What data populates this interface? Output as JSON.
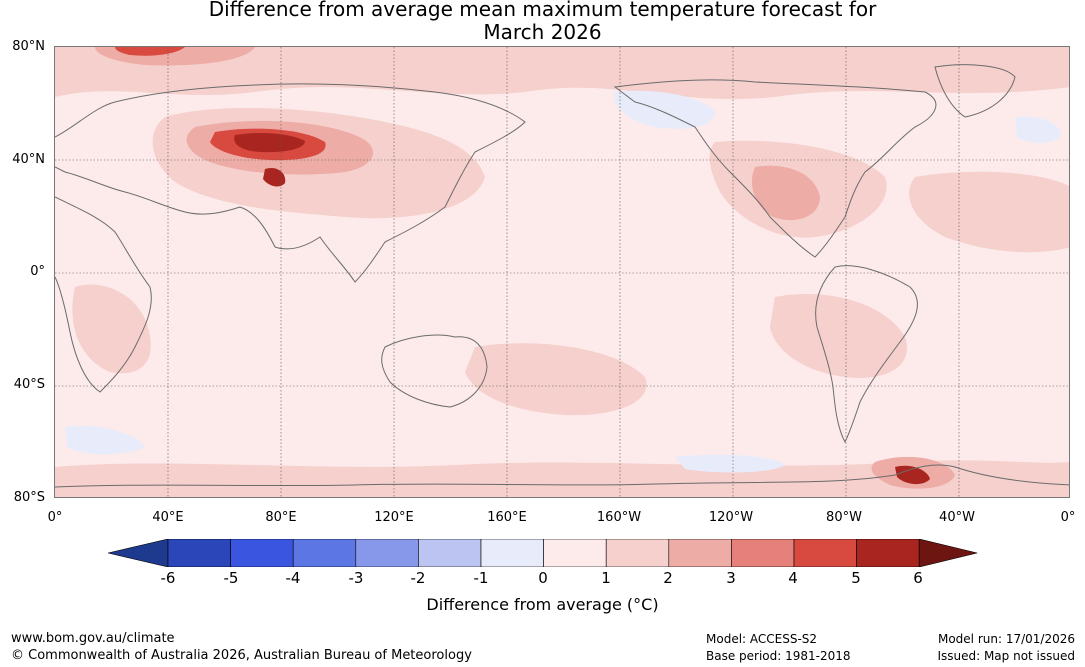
{
  "title": {
    "line1": "Difference from average mean maximum temperature forecast for",
    "line2": "March 2026"
  },
  "map": {
    "lat_labels": [
      "80°N",
      "40°N",
      "0°",
      "40°S",
      "80°S"
    ],
    "lon_labels": [
      "0°",
      "40°E",
      "80°E",
      "120°E",
      "160°E",
      "160°W",
      "120°W",
      "80°W",
      "40°W",
      "0°"
    ],
    "background_color": "#fcebea",
    "gridline_color": "#555555",
    "coastline_color": "#6b6b6b"
  },
  "colorbar": {
    "ticks": [
      "-6",
      "-5",
      "-4",
      "-3",
      "-2",
      "-1",
      "0",
      "1",
      "2",
      "3",
      "4",
      "5",
      "6"
    ],
    "colors": [
      "#1e3a8f",
      "#2b46b8",
      "#3a56e0",
      "#5c77e4",
      "#8798ea",
      "#bcc5f1",
      "#e8ecfa",
      "#fcebea",
      "#f5d0cd",
      "#eeaca7",
      "#e5807a",
      "#d84a3f",
      "#a8261f",
      "#6d1511"
    ],
    "label": "Difference from average (",
    "label_unit": "°C",
    "label_close": ")"
  },
  "footer": {
    "website": "www.bom.gov.au/climate",
    "copyright": "© Commonwealth of Australia 2026, Australian Bureau of Meteorology",
    "model": "Model: ACCESS-S2",
    "base_period": "Base period: 1981-2018",
    "model_run": "Model run: 17/01/2026",
    "issued": "Issued: Map not issued"
  }
}
